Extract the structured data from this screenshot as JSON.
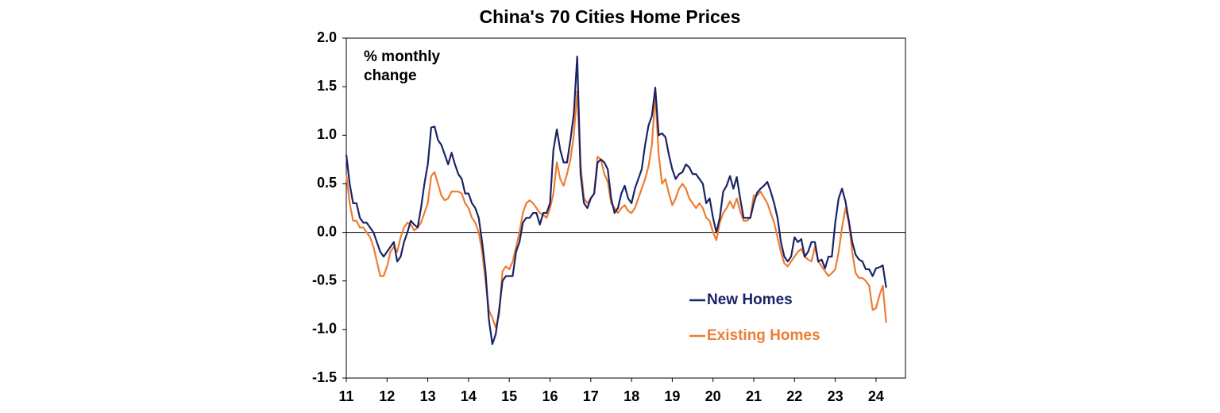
{
  "chart_data": {
    "type": "line",
    "title": "China's 70 Cities Home Prices",
    "annotation": "% monthly change",
    "categories": [
      "11",
      null,
      null,
      null,
      null,
      null,
      null,
      null,
      null,
      null,
      null,
      null,
      "12",
      null,
      null,
      null,
      null,
      null,
      null,
      null,
      null,
      null,
      null,
      null,
      "13",
      null,
      null,
      null,
      null,
      null,
      null,
      null,
      null,
      null,
      null,
      null,
      "14",
      null,
      null,
      null,
      null,
      null,
      null,
      null,
      null,
      null,
      null,
      null,
      "15",
      null,
      null,
      null,
      null,
      null,
      null,
      null,
      null,
      null,
      null,
      null,
      "16",
      null,
      null,
      null,
      null,
      null,
      null,
      null,
      null,
      null,
      null,
      null,
      "17",
      null,
      null,
      null,
      null,
      null,
      null,
      null,
      null,
      null,
      null,
      null,
      "18",
      null,
      null,
      null,
      null,
      null,
      null,
      null,
      null,
      null,
      null,
      null,
      "19",
      null,
      null,
      null,
      null,
      null,
      null,
      null,
      null,
      null,
      null,
      null,
      "20",
      null,
      null,
      null,
      null,
      null,
      null,
      null,
      null,
      null,
      null,
      null,
      "21",
      null,
      null,
      null,
      null,
      null,
      null,
      null,
      null,
      null,
      null,
      null,
      "22",
      null,
      null,
      null,
      null,
      null,
      null,
      null,
      null,
      null,
      null,
      null,
      "23",
      null,
      null,
      null,
      null,
      null,
      null,
      null,
      null,
      null,
      null,
      null,
      "24",
      null,
      null,
      null
    ],
    "series": [
      {
        "name": "New Homes",
        "color": "#1a2466",
        "values": [
          0.8,
          0.5,
          0.3,
          0.3,
          0.15,
          0.1,
          0.1,
          0.05,
          0.0,
          -0.1,
          -0.2,
          -0.25,
          -0.2,
          -0.15,
          -0.1,
          -0.3,
          -0.25,
          -0.1,
          0.0,
          0.12,
          0.08,
          0.05,
          0.25,
          0.5,
          0.7,
          1.08,
          1.09,
          0.95,
          0.9,
          0.8,
          0.7,
          0.82,
          0.7,
          0.6,
          0.55,
          0.4,
          0.4,
          0.3,
          0.25,
          0.15,
          -0.1,
          -0.4,
          -0.9,
          -1.15,
          -1.05,
          -0.8,
          -0.5,
          -0.45,
          -0.45,
          -0.45,
          -0.2,
          -0.1,
          0.1,
          0.15,
          0.15,
          0.2,
          0.2,
          0.08,
          0.2,
          0.2,
          0.3,
          0.85,
          1.06,
          0.85,
          0.72,
          0.72,
          0.95,
          1.22,
          1.81,
          0.6,
          0.3,
          0.25,
          0.35,
          0.4,
          0.72,
          0.75,
          0.72,
          0.65,
          0.35,
          0.2,
          0.25,
          0.4,
          0.48,
          0.35,
          0.3,
          0.45,
          0.55,
          0.65,
          0.9,
          1.1,
          1.2,
          1.49,
          1.0,
          1.02,
          0.98,
          0.8,
          0.65,
          0.55,
          0.6,
          0.62,
          0.7,
          0.67,
          0.6,
          0.6,
          0.55,
          0.5,
          0.3,
          0.35,
          0.15,
          0.0,
          0.15,
          0.42,
          0.48,
          0.58,
          0.45,
          0.57,
          0.35,
          0.15,
          0.15,
          0.15,
          0.3,
          0.41,
          0.45,
          0.48,
          0.52,
          0.42,
          0.3,
          0.15,
          -0.1,
          -0.25,
          -0.3,
          -0.25,
          -0.05,
          -0.1,
          -0.07,
          -0.25,
          -0.2,
          -0.1,
          -0.1,
          -0.3,
          -0.28,
          -0.37,
          -0.25,
          -0.25,
          0.1,
          0.35,
          0.45,
          0.32,
          0.12,
          -0.1,
          -0.23,
          -0.28,
          -0.3,
          -0.38,
          -0.38,
          -0.45,
          -0.37,
          -0.36,
          -0.34,
          -0.57
        ]
      },
      {
        "name": "Existing Homes",
        "color": "#ed7d31",
        "values": [
          0.6,
          0.3,
          0.12,
          0.12,
          0.05,
          0.05,
          0.0,
          -0.05,
          -0.15,
          -0.3,
          -0.45,
          -0.45,
          -0.35,
          -0.2,
          -0.15,
          -0.2,
          -0.05,
          0.05,
          0.1,
          0.08,
          0.02,
          0.05,
          0.1,
          0.2,
          0.3,
          0.58,
          0.62,
          0.5,
          0.38,
          0.33,
          0.35,
          0.42,
          0.42,
          0.42,
          0.4,
          0.3,
          0.25,
          0.15,
          0.1,
          0.0,
          -0.2,
          -0.5,
          -0.8,
          -0.88,
          -0.98,
          -0.85,
          -0.4,
          -0.35,
          -0.38,
          -0.3,
          -0.15,
          0.0,
          0.2,
          0.3,
          0.33,
          0.3,
          0.25,
          0.2,
          0.18,
          0.15,
          0.25,
          0.4,
          0.72,
          0.55,
          0.48,
          0.6,
          0.75,
          1.0,
          1.45,
          0.7,
          0.35,
          0.3,
          0.35,
          0.4,
          0.78,
          0.75,
          0.6,
          0.52,
          0.3,
          0.25,
          0.2,
          0.25,
          0.28,
          0.22,
          0.2,
          0.25,
          0.35,
          0.45,
          0.55,
          0.68,
          0.9,
          1.42,
          0.8,
          0.5,
          0.55,
          0.4,
          0.28,
          0.35,
          0.45,
          0.5,
          0.45,
          0.35,
          0.3,
          0.25,
          0.3,
          0.25,
          0.15,
          0.12,
          0.0,
          -0.08,
          0.1,
          0.2,
          0.25,
          0.32,
          0.25,
          0.35,
          0.22,
          0.12,
          0.12,
          0.15,
          0.38,
          0.38,
          0.42,
          0.36,
          0.3,
          0.2,
          0.1,
          -0.05,
          -0.2,
          -0.32,
          -0.35,
          -0.3,
          -0.25,
          -0.2,
          -0.17,
          -0.25,
          -0.28,
          -0.3,
          -0.15,
          -0.3,
          -0.35,
          -0.4,
          -0.45,
          -0.42,
          -0.38,
          -0.2,
          0.05,
          0.25,
          0.1,
          -0.2,
          -0.42,
          -0.47,
          -0.47,
          -0.5,
          -0.55,
          -0.8,
          -0.78,
          -0.65,
          -0.55,
          -0.93
        ]
      }
    ],
    "ylim": [
      -1.5,
      2.0
    ],
    "yticks": [
      {
        "value": 2,
        "label": "2.0"
      },
      1.5,
      {
        "value": 1,
        "label": "1.0"
      },
      0.5,
      {
        "value": 0,
        "label": "0.0"
      },
      -0.5,
      {
        "value": -1,
        "label": "-1.0"
      },
      -1.5
    ],
    "grid": false,
    "legend": "lower right"
  }
}
